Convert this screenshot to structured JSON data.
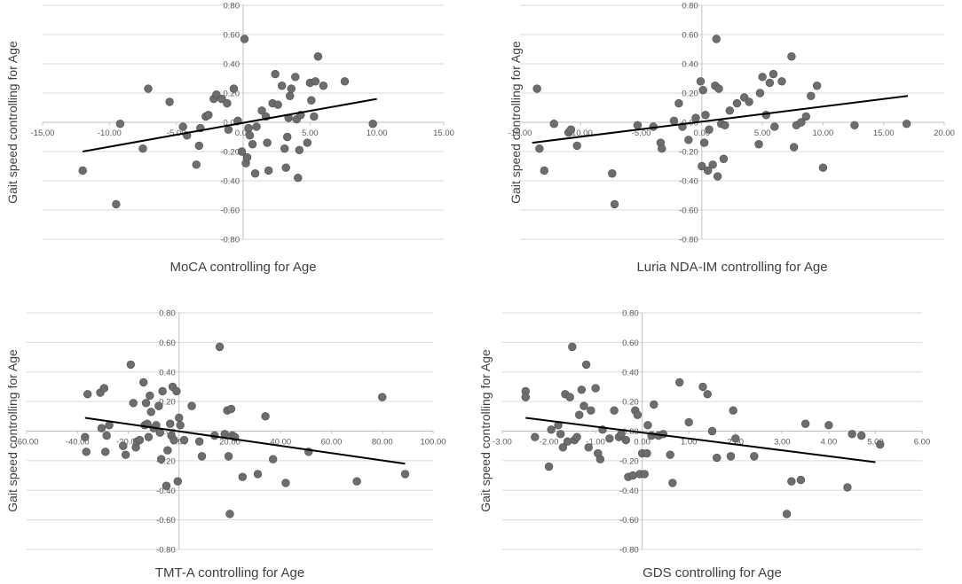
{
  "chart_data": [
    {
      "type": "scatter",
      "xlabel": "MoCA controlling for Age",
      "ylabel": "Gait speed controlling for Age",
      "xlim": [
        -15,
        15
      ],
      "ylim": [
        -0.8,
        0.8
      ],
      "x_ticks": [
        "-15.00",
        "-10.00",
        "-5.00",
        "0.00",
        "5.00",
        "10.00",
        "15.00"
      ],
      "y_ticks": [
        "0.80",
        "0.60",
        "0.40",
        "0.20",
        "0.00",
        "-0.20",
        "-0.40",
        "-0.60",
        "-0.80"
      ],
      "trendline": [
        [
          -12,
          -0.2
        ],
        [
          10,
          0.16
        ]
      ],
      "points": [
        [
          -12.0,
          -0.33
        ],
        [
          -9.5,
          -0.56
        ],
        [
          -9.2,
          -0.01
        ],
        [
          -7.5,
          -0.18
        ],
        [
          -7.1,
          0.23
        ],
        [
          -5.5,
          0.14
        ],
        [
          -4.5,
          -0.03
        ],
        [
          -4.2,
          -0.09
        ],
        [
          -3.5,
          -0.29
        ],
        [
          -3.3,
          -0.16
        ],
        [
          -3.2,
          -0.04
        ],
        [
          -2.8,
          0.04
        ],
        [
          -2.6,
          0.05
        ],
        [
          -2.2,
          0.16
        ],
        [
          -2.0,
          0.19
        ],
        [
          -1.6,
          0.16
        ],
        [
          -1.2,
          0.13
        ],
        [
          -1.1,
          -0.05
        ],
        [
          -0.7,
          0.23
        ],
        [
          -0.4,
          0.01
        ],
        [
          -0.1,
          -0.2
        ],
        [
          0.1,
          0.57
        ],
        [
          0.2,
          -0.28
        ],
        [
          0.3,
          -0.24
        ],
        [
          0.4,
          -0.04
        ],
        [
          0.5,
          -0.09
        ],
        [
          0.7,
          -0.15
        ],
        [
          0.9,
          -0.35
        ],
        [
          1.0,
          -0.03
        ],
        [
          1.4,
          0.08
        ],
        [
          1.7,
          0.04
        ],
        [
          1.8,
          -0.14
        ],
        [
          1.9,
          -0.33
        ],
        [
          2.2,
          0.13
        ],
        [
          2.4,
          0.33
        ],
        [
          2.6,
          0.12
        ],
        [
          2.9,
          0.25
        ],
        [
          3.1,
          -0.18
        ],
        [
          3.2,
          -0.31
        ],
        [
          3.3,
          -0.1
        ],
        [
          3.4,
          0.03
        ],
        [
          3.5,
          0.18
        ],
        [
          3.6,
          0.23
        ],
        [
          3.9,
          0.31
        ],
        [
          4.0,
          0.02
        ],
        [
          4.1,
          -0.38
        ],
        [
          4.2,
          -0.19
        ],
        [
          4.3,
          0.05
        ],
        [
          4.8,
          -0.14
        ],
        [
          5.0,
          0.27
        ],
        [
          5.1,
          0.15
        ],
        [
          5.3,
          0.04
        ],
        [
          5.4,
          0.28
        ],
        [
          5.6,
          0.45
        ],
        [
          6.0,
          0.25
        ],
        [
          7.6,
          0.28
        ],
        [
          9.7,
          -0.01
        ]
      ]
    },
    {
      "type": "scatter",
      "xlabel": "Luria NDA-IM controlling for Age",
      "ylabel": "Gait speed controlling for Age",
      "xlim": [
        -15,
        20
      ],
      "ylim": [
        -0.8,
        0.8
      ],
      "x_ticks": [
        "-15.00",
        "-10.00",
        "-5.00",
        "0.00",
        "5.00",
        "10.00",
        "15.00",
        "20.00"
      ],
      "y_ticks": [
        "0.80",
        "0.60",
        "0.40",
        "0.20",
        "0.00",
        "-0.20",
        "-0.40",
        "-0.60",
        "-0.80"
      ],
      "trendline": [
        [
          -14,
          -0.14
        ],
        [
          17,
          0.18
        ]
      ],
      "points": [
        [
          -13.6,
          0.23
        ],
        [
          -13.4,
          -0.18
        ],
        [
          -13.0,
          -0.33
        ],
        [
          -12.2,
          -0.01
        ],
        [
          -11.0,
          -0.07
        ],
        [
          -10.8,
          -0.05
        ],
        [
          -10.3,
          -0.16
        ],
        [
          -7.4,
          -0.35
        ],
        [
          -7.2,
          -0.56
        ],
        [
          -5.3,
          -0.02
        ],
        [
          -4.0,
          -0.03
        ],
        [
          -3.4,
          -0.14
        ],
        [
          -3.3,
          -0.18
        ],
        [
          -2.3,
          0.01
        ],
        [
          -1.9,
          0.13
        ],
        [
          -1.6,
          -0.03
        ],
        [
          -1.1,
          -0.12
        ],
        [
          -0.5,
          0.03
        ],
        [
          -0.1,
          0.28
        ],
        [
          0.0,
          -0.3
        ],
        [
          0.1,
          0.22
        ],
        [
          0.2,
          -0.14
        ],
        [
          0.3,
          0.05
        ],
        [
          0.5,
          -0.33
        ],
        [
          0.6,
          -0.05
        ],
        [
          0.9,
          -0.29
        ],
        [
          1.1,
          0.25
        ],
        [
          1.2,
          0.57
        ],
        [
          1.3,
          -0.37
        ],
        [
          1.4,
          0.23
        ],
        [
          1.6,
          -0.01
        ],
        [
          1.8,
          -0.25
        ],
        [
          1.9,
          -0.02
        ],
        [
          2.3,
          0.08
        ],
        [
          2.9,
          0.13
        ],
        [
          3.5,
          0.17
        ],
        [
          3.9,
          0.14
        ],
        [
          4.7,
          -0.15
        ],
        [
          4.8,
          0.2
        ],
        [
          5.0,
          0.31
        ],
        [
          5.3,
          0.05
        ],
        [
          5.6,
          0.27
        ],
        [
          5.9,
          0.33
        ],
        [
          6.0,
          -0.03
        ],
        [
          6.6,
          0.28
        ],
        [
          7.4,
          0.45
        ],
        [
          7.6,
          -0.17
        ],
        [
          7.8,
          -0.02
        ],
        [
          8.2,
          0.0
        ],
        [
          8.6,
          0.04
        ],
        [
          9.0,
          0.18
        ],
        [
          9.5,
          0.25
        ],
        [
          10.0,
          -0.31
        ],
        [
          12.6,
          -0.02
        ],
        [
          16.9,
          -0.01
        ]
      ]
    },
    {
      "type": "scatter",
      "xlabel": "TMT-A controlling for Age",
      "ylabel": "Gait speed controlling for Age",
      "xlim": [
        -60,
        100
      ],
      "ylim": [
        -0.8,
        0.8
      ],
      "x_ticks": [
        "-60.00",
        "-40.00",
        "-20.00",
        "0.00",
        "20.00",
        "40.00",
        "60.00",
        "80.00",
        "100.00"
      ],
      "y_ticks": [
        "0.80",
        "0.60",
        "0.40",
        "0.20",
        "0.00",
        "-0.20",
        "-0.40",
        "-0.60",
        "-0.80"
      ],
      "trendline": [
        [
          -37,
          0.09
        ],
        [
          89,
          -0.22
        ]
      ],
      "points": [
        [
          -37,
          -0.04
        ],
        [
          -36.5,
          -0.14
        ],
        [
          -36,
          0.25
        ],
        [
          -31,
          0.26
        ],
        [
          -30.5,
          0.02
        ],
        [
          -29.5,
          0.29
        ],
        [
          -29,
          -0.14
        ],
        [
          -28.5,
          -0.03
        ],
        [
          -27.5,
          0.04
        ],
        [
          -22,
          -0.1
        ],
        [
          -21,
          -0.16
        ],
        [
          -19,
          0.45
        ],
        [
          -18,
          0.19
        ],
        [
          -17,
          -0.11
        ],
        [
          -16.5,
          -0.07
        ],
        [
          -15.5,
          -0.06
        ],
        [
          -14,
          0.33
        ],
        [
          -13.5,
          0.04
        ],
        [
          -13,
          0.19
        ],
        [
          -12.5,
          0.05
        ],
        [
          -12,
          -0.04
        ],
        [
          -11.5,
          0.24
        ],
        [
          -11,
          0.13
        ],
        [
          -10,
          0.02
        ],
        [
          -9,
          0.04
        ],
        [
          -8,
          0.17
        ],
        [
          -7.5,
          -0.01
        ],
        [
          -7,
          -0.19
        ],
        [
          -6.5,
          0.27
        ],
        [
          -5,
          -0.37
        ],
        [
          -4.5,
          -0.13
        ],
        [
          -3.5,
          0.05
        ],
        [
          -3,
          -0.03
        ],
        [
          -2.5,
          0.3
        ],
        [
          -2,
          -0.06
        ],
        [
          -1,
          0.27
        ],
        [
          -0.5,
          -0.34
        ],
        [
          0,
          0.09
        ],
        [
          0.5,
          0.04
        ],
        [
          2,
          -0.06
        ],
        [
          5,
          0.17
        ],
        [
          8,
          -0.07
        ],
        [
          9,
          -0.17
        ],
        [
          14,
          -0.03
        ],
        [
          16,
          0.57
        ],
        [
          18,
          -0.02
        ],
        [
          19,
          0.14
        ],
        [
          19.5,
          -0.17
        ],
        [
          20,
          -0.56
        ],
        [
          20.5,
          0.15
        ],
        [
          21,
          -0.03
        ],
        [
          22,
          -0.04
        ],
        [
          25,
          -0.31
        ],
        [
          31,
          -0.29
        ],
        [
          34,
          0.1
        ],
        [
          37,
          -0.19
        ],
        [
          42,
          -0.35
        ],
        [
          51,
          -0.14
        ],
        [
          70,
          -0.34
        ],
        [
          80,
          0.23
        ],
        [
          89,
          -0.29
        ]
      ]
    },
    {
      "type": "scatter",
      "xlabel": "GDS controlling for Age",
      "ylabel": "Gait speed controlling for Age",
      "xlim": [
        -3,
        6
      ],
      "ylim": [
        -0.8,
        0.8
      ],
      "x_ticks": [
        "-3.00",
        "-2.00",
        "-1.00",
        "0.00",
        "1.00",
        "2.00",
        "3.00",
        "4.00",
        "5.00",
        "6.00"
      ],
      "y_ticks": [
        "0.80",
        "0.60",
        "0.40",
        "0.20",
        "0.00",
        "-0.20",
        "-0.40",
        "-0.60",
        "-0.80"
      ],
      "trendline": [
        [
          -2.5,
          0.09
        ],
        [
          5.0,
          -0.21
        ]
      ],
      "points": [
        [
          -2.5,
          0.27
        ],
        [
          -2.5,
          0.23
        ],
        [
          -2.3,
          -0.04
        ],
        [
          -2.0,
          -0.24
        ],
        [
          -1.95,
          0.01
        ],
        [
          -1.8,
          0.04
        ],
        [
          -1.75,
          -0.02
        ],
        [
          -1.7,
          -0.11
        ],
        [
          -1.65,
          0.25
        ],
        [
          -1.6,
          -0.07
        ],
        [
          -1.55,
          0.23
        ],
        [
          -1.5,
          0.57
        ],
        [
          -1.45,
          -0.06
        ],
        [
          -1.4,
          -0.04
        ],
        [
          -1.35,
          0.11
        ],
        [
          -1.3,
          0.28
        ],
        [
          -1.25,
          0.17
        ],
        [
          -1.2,
          0.45
        ],
        [
          -1.15,
          -0.11
        ],
        [
          -1.1,
          0.14
        ],
        [
          -1.0,
          0.29
        ],
        [
          -0.95,
          -0.15
        ],
        [
          -0.9,
          -0.19
        ],
        [
          -0.85,
          0.01
        ],
        [
          -0.7,
          -0.05
        ],
        [
          -0.6,
          0.14
        ],
        [
          -0.5,
          -0.04
        ],
        [
          -0.45,
          -0.02
        ],
        [
          -0.35,
          -0.06
        ],
        [
          -0.3,
          -0.31
        ],
        [
          -0.2,
          -0.3
        ],
        [
          -0.15,
          0.14
        ],
        [
          -0.1,
          0.11
        ],
        [
          -0.05,
          -0.29
        ],
        [
          0.0,
          -0.15
        ],
        [
          0.05,
          -0.29
        ],
        [
          0.1,
          -0.15
        ],
        [
          0.12,
          0.04
        ],
        [
          0.2,
          -0.03
        ],
        [
          0.25,
          0.18
        ],
        [
          0.35,
          -0.03
        ],
        [
          0.45,
          -0.02
        ],
        [
          0.6,
          -0.16
        ],
        [
          0.65,
          -0.35
        ],
        [
          0.8,
          0.33
        ],
        [
          1.0,
          0.06
        ],
        [
          1.3,
          0.3
        ],
        [
          1.4,
          0.25
        ],
        [
          1.5,
          0.0
        ],
        [
          1.6,
          -0.18
        ],
        [
          1.9,
          -0.17
        ],
        [
          1.95,
          0.14
        ],
        [
          2.0,
          -0.05
        ],
        [
          2.4,
          -0.17
        ],
        [
          3.1,
          -0.56
        ],
        [
          3.2,
          -0.34
        ],
        [
          3.4,
          -0.33
        ],
        [
          3.5,
          0.05
        ],
        [
          4.0,
          0.04
        ],
        [
          4.4,
          -0.38
        ],
        [
          4.5,
          -0.02
        ],
        [
          4.7,
          -0.03
        ],
        [
          5.1,
          -0.09
        ]
      ]
    }
  ]
}
